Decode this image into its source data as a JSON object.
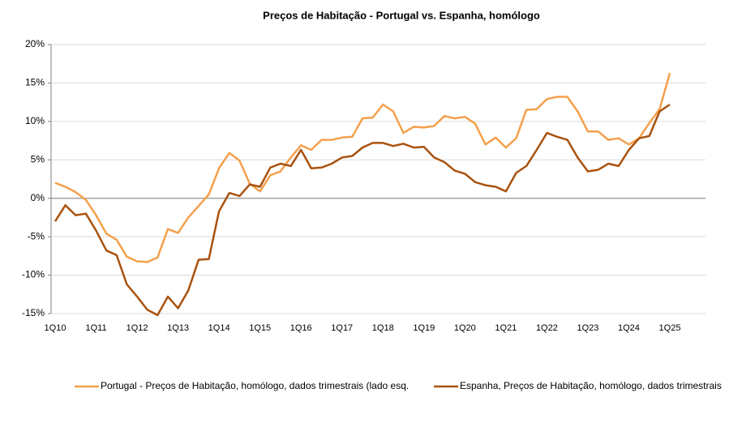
{
  "chart_data": {
    "type": "line",
    "title": "Preços de Habitação - Portugal vs. Espanha, homólogo",
    "categories": [
      "1Q10",
      null,
      null,
      null,
      "1Q11",
      null,
      null,
      null,
      "1Q12",
      null,
      null,
      null,
      "1Q13",
      null,
      null,
      null,
      "1Q14",
      null,
      null,
      null,
      "1Q15",
      null,
      null,
      null,
      "1Q16",
      null,
      null,
      null,
      "1Q17",
      null,
      null,
      null,
      "1Q18",
      null,
      null,
      null,
      "1Q19",
      null,
      null,
      null,
      "1Q20",
      null,
      null,
      null,
      "1Q21",
      null,
      null,
      null,
      "1Q22",
      null,
      null,
      null,
      "1Q23",
      null,
      null,
      null,
      "1Q24",
      null,
      null,
      null,
      "1Q25"
    ],
    "series": [
      {
        "name": "Portugal - Preços de Habitação, homólogo, dados trimestrais (lado esq.",
        "color": "#f4a04c",
        "values": [
          2.0,
          1.5,
          0.8,
          -0.2,
          -2.2,
          -4.6,
          -5.4,
          -7.6,
          -8.2,
          -8.3,
          -7.7,
          -4.0,
          -4.5,
          -2.5,
          -1.0,
          0.5,
          3.9,
          5.9,
          4.9,
          1.9,
          0.9,
          3.0,
          3.5,
          5.3,
          6.9,
          6.3,
          7.6,
          7.6,
          7.9,
          8.0,
          10.4,
          10.5,
          12.2,
          11.3,
          8.5,
          9.3,
          9.2,
          9.4,
          10.7,
          10.4,
          10.6,
          9.7,
          7.0,
          7.9,
          6.6,
          7.8,
          11.5,
          11.6,
          12.9,
          13.2,
          13.2,
          11.3,
          8.7,
          8.7,
          7.6,
          7.8,
          7.0,
          7.8,
          9.8,
          11.6,
          16.3
        ]
      },
      {
        "name": "Espanha, Preços de Habitação, homólogo, dados trimestrais",
        "color": "#a9520f",
        "values": [
          -3.0,
          -0.9,
          -2.2,
          -2.0,
          -4.2,
          -6.8,
          -7.4,
          -11.2,
          -12.8,
          -14.5,
          -15.2,
          -12.8,
          -14.3,
          -12.0,
          -8.0,
          -7.9,
          -1.7,
          0.7,
          0.3,
          1.8,
          1.5,
          4.0,
          4.5,
          4.2,
          6.3,
          3.9,
          4.0,
          4.5,
          5.3,
          5.5,
          6.6,
          7.2,
          7.2,
          6.8,
          7.1,
          6.6,
          6.7,
          5.3,
          4.7,
          3.6,
          3.2,
          2.1,
          1.7,
          1.5,
          0.9,
          3.3,
          4.2,
          6.3,
          8.5,
          8.0,
          7.6,
          5.3,
          3.5,
          3.7,
          4.5,
          4.2,
          6.3,
          7.8,
          8.1,
          11.3,
          12.2
        ]
      }
    ],
    "ylim": [
      -15,
      20
    ],
    "yticks": [
      {
        "value": -15,
        "label": "-15%"
      },
      {
        "value": -10,
        "label": "-10%"
      },
      {
        "value": -5,
        "label": "-5%"
      },
      {
        "value": 0,
        "label": "0%"
      },
      {
        "value": 5,
        "label": "5%"
      },
      {
        "value": 10,
        "label": "10%"
      },
      {
        "value": 15,
        "label": "15%"
      },
      {
        "value": 20,
        "label": "20%"
      }
    ],
    "grid": true,
    "legend": "bottom"
  }
}
